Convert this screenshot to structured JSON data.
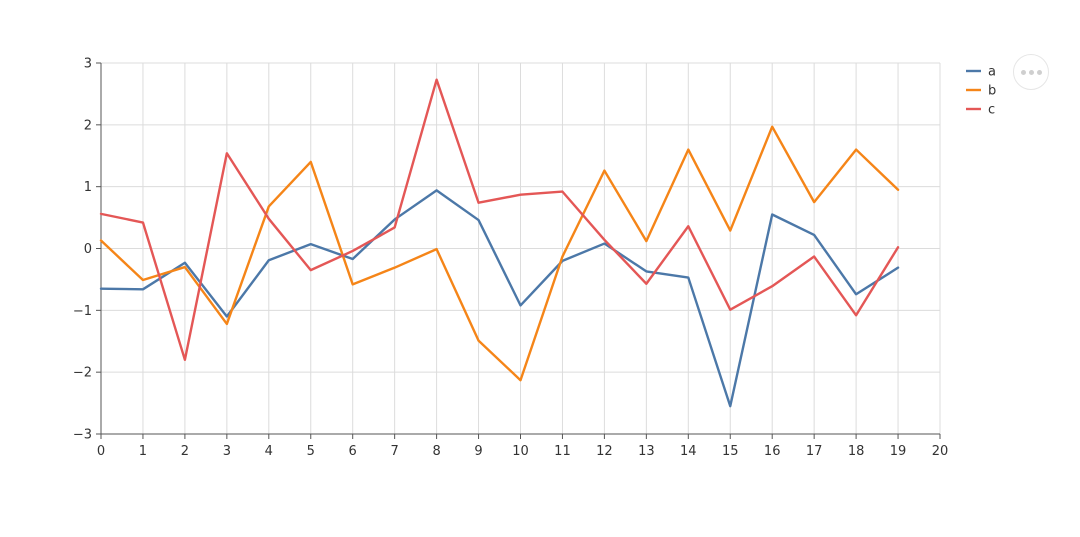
{
  "actions_menu": {
    "icon": "more-horizontal-icon"
  },
  "chart_data": {
    "type": "line",
    "x": [
      0,
      1,
      2,
      3,
      4,
      5,
      6,
      7,
      8,
      9,
      10,
      11,
      12,
      13,
      14,
      15,
      16,
      17,
      18,
      19
    ],
    "xlim": [
      0,
      20
    ],
    "ylim": [
      -3,
      3
    ],
    "x_ticks": [
      "0",
      "1",
      "2",
      "3",
      "4",
      "5",
      "6",
      "7",
      "8",
      "9",
      "10",
      "11",
      "12",
      "13",
      "14",
      "15",
      "16",
      "17",
      "18",
      "19",
      "20"
    ],
    "y_ticks": [
      "−3",
      "−2",
      "−1",
      "0",
      "1",
      "2",
      "3"
    ],
    "grid": true,
    "legend_position": "top-right",
    "series": [
      {
        "name": "a",
        "color": "#4c78a8",
        "values": [
          -0.65,
          -0.66,
          -0.23,
          -1.1,
          -0.19,
          0.07,
          -0.17,
          0.47,
          0.94,
          0.46,
          -0.92,
          -0.2,
          0.08,
          -0.37,
          -0.47,
          -2.55,
          0.55,
          0.22,
          -0.74,
          -0.31
        ]
      },
      {
        "name": "b",
        "color": "#f58518",
        "values": [
          0.13,
          -0.51,
          -0.3,
          -1.22,
          0.68,
          1.4,
          -0.58,
          -0.31,
          -0.01,
          -1.49,
          -2.13,
          -0.13,
          1.26,
          0.12,
          1.6,
          0.29,
          1.97,
          0.75,
          1.6,
          0.95
        ]
      },
      {
        "name": "c",
        "color": "#e45756",
        "values": [
          0.56,
          0.42,
          -1.8,
          1.54,
          0.48,
          -0.35,
          -0.04,
          0.34,
          2.73,
          0.74,
          0.87,
          0.92,
          0.14,
          -0.57,
          0.36,
          -0.99,
          -0.61,
          -0.13,
          -1.08,
          0.02
        ]
      }
    ]
  }
}
